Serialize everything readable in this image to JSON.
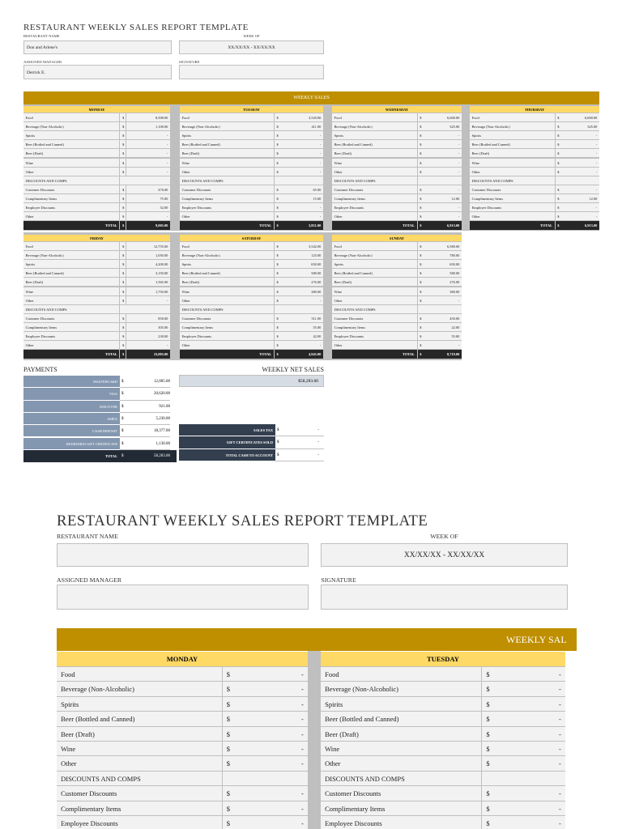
{
  "header": {
    "title": "RESTAURANT WEEKLY SALES REPORT TEMPLATE",
    "restaurant_name_label": "RESTAURANT NAME",
    "restaurant_name": "Don and Arlene's",
    "week_of_label": "WEEK OF",
    "week_of": "XX/XX/XX - XX/XX/XX",
    "manager_label": "ASSIGNED MANAGER",
    "manager": "Derrick E.",
    "signature_label": "SIGNATURE"
  },
  "weekly_sales": {
    "title": "WEEKLY SALES",
    "currency": "$",
    "empty": "-",
    "total_label": "TOTAL",
    "item_labels": [
      "Food",
      "Beverage (Non-Alcoholic)",
      "Spirits",
      "Beer (Bottled and Canned)",
      "Beer (Draft)",
      "Wine",
      "Other"
    ],
    "discount_heading": "DISCOUNTS AND COMPS",
    "discount_labels": [
      "Customer Discounts",
      "Complimentary Items",
      "Employee Discounts",
      "Other"
    ],
    "days": [
      {
        "name": "MONDAY",
        "sales": [
          "8,508.00",
          "1,100.00",
          null,
          null,
          null,
          null,
          null
        ],
        "discounts": [
          "476.00",
          "75.00",
          "52.00",
          null
        ],
        "total": "9,005.00"
      },
      {
        "name": "TUESDAY",
        "sales": [
          "3,520.00",
          "411.00",
          null,
          null,
          null,
          null,
          null
        ],
        "discounts": [
          "65.00",
          "15.00",
          null,
          null
        ],
        "total": "3,851.00"
      },
      {
        "name": "WEDNESDAY",
        "sales": [
          "6,600.00",
          "325.00",
          null,
          null,
          null,
          null,
          null
        ],
        "discounts": [
          null,
          "12.00",
          null,
          null
        ],
        "total": "6,913.00"
      },
      {
        "name": "THURSDAY",
        "sales": [
          "6,600.00",
          "325.00",
          null,
          null,
          null,
          null,
          null
        ],
        "discounts": [
          null,
          "12.00",
          null,
          null
        ],
        "total": "6,913.00"
      },
      {
        "name": "FRIDAY",
        "sales": [
          "12,755.00",
          "1,050.00",
          "4,200.00",
          "3,150.00",
          "1,565.00",
          "1,750.00",
          null
        ],
        "discounts": [
          "850.00",
          "305.00",
          "230.00",
          null
        ],
        "total": "23,085.00"
      },
      {
        "name": "SATURDAY",
        "sales": [
          "3,542.00",
          "125.00",
          "650.00",
          "580.00",
          "276.00",
          "380.00",
          null
        ],
        "discounts": [
          "511.00",
          "55.00",
          "42.00",
          null
        ],
        "total": "4,945.00"
      },
      {
        "name": "SUNDAY",
        "sales": [
          "6,580.00",
          "780.00",
          "650.00",
          "580.00",
          "276.00",
          "380.00",
          null
        ],
        "discounts": [
          "450.00",
          "22.00",
          "55.00",
          null
        ],
        "total": "8,719.00"
      }
    ]
  },
  "payments": {
    "title": "PAYMENTS",
    "methods": [
      {
        "label": "MASTERCARD",
        "amount": "12,005.00"
      },
      {
        "label": "VISA",
        "amount": "20,620.00"
      },
      {
        "label": "DISCOVER",
        "amount": "921.00"
      },
      {
        "label": "AMEX",
        "amount": "5,230.00"
      },
      {
        "label": "CASH DEPOSIT",
        "amount": "18,377.00"
      },
      {
        "label": "REDEEMED GIFT CERTIFICATE",
        "amount": "1,130.00"
      }
    ],
    "total_label": "TOTAL",
    "total": "58,283.00",
    "net_sales_label": "WEEKLY NET SALES",
    "net_sales": "$58,283.00",
    "summary": [
      {
        "label": "SALES TAX",
        "amount": null
      },
      {
        "label": "GIFT CERTIFICATES SOLD",
        "amount": null
      },
      {
        "label": "TOTAL CASH TO ACCOUNT",
        "amount": null
      }
    ]
  }
}
